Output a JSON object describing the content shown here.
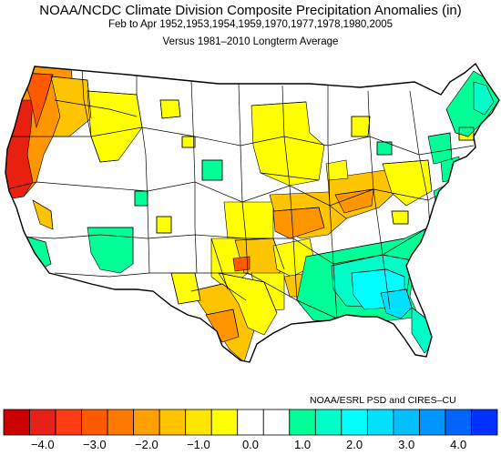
{
  "title": "NOAA/NCDC Climate Division Composite Precipitation Anomalies (in)",
  "subtitle_period": "Feb to Apr  1952,1953,1954,1959,1970,1977,1978,1980,2005",
  "subtitle_baseline": "Versus 1981–2010 Longterm Average",
  "credit": "NOAA/ESRL PSD and CIRES–CU",
  "colorbar": {
    "colors": [
      "#cc0000",
      "#e8201a",
      "#ff3c14",
      "#ff5a00",
      "#ff7800",
      "#ffa000",
      "#ffc400",
      "#ffe600",
      "#ffff00",
      "#ffffff",
      "#ffffff",
      "#00ff96",
      "#00ffc8",
      "#00ffff",
      "#00e0ff",
      "#00c0ff",
      "#0096ff",
      "#0064ff",
      "#0032ff"
    ],
    "ticks": [
      {
        "value": -4.0,
        "label": "−4.0"
      },
      {
        "value": -3.0,
        "label": "−3.0"
      },
      {
        "value": -2.0,
        "label": "−2.0"
      },
      {
        "value": -1.0,
        "label": "−1.0"
      },
      {
        "value": 0.0,
        "label": "0.0"
      },
      {
        "value": 1.0,
        "label": "1.0"
      },
      {
        "value": 2.0,
        "label": "2.0"
      },
      {
        "value": 3.0,
        "label": "3.0"
      },
      {
        "value": 4.0,
        "label": "4.0"
      }
    ]
  },
  "anomaly_colors": {
    "very_dry": "#e82010",
    "dry_strong": "#ff5a00",
    "dry": "#ff9600",
    "dry_moderate": "#ffc400",
    "dry_slight": "#ffff00",
    "neutral": "#ffffff",
    "wet_slight": "#00ff96",
    "wet": "#00ffc8",
    "wet_strong": "#00ffff",
    "wet_very": "#00e0ff"
  }
}
